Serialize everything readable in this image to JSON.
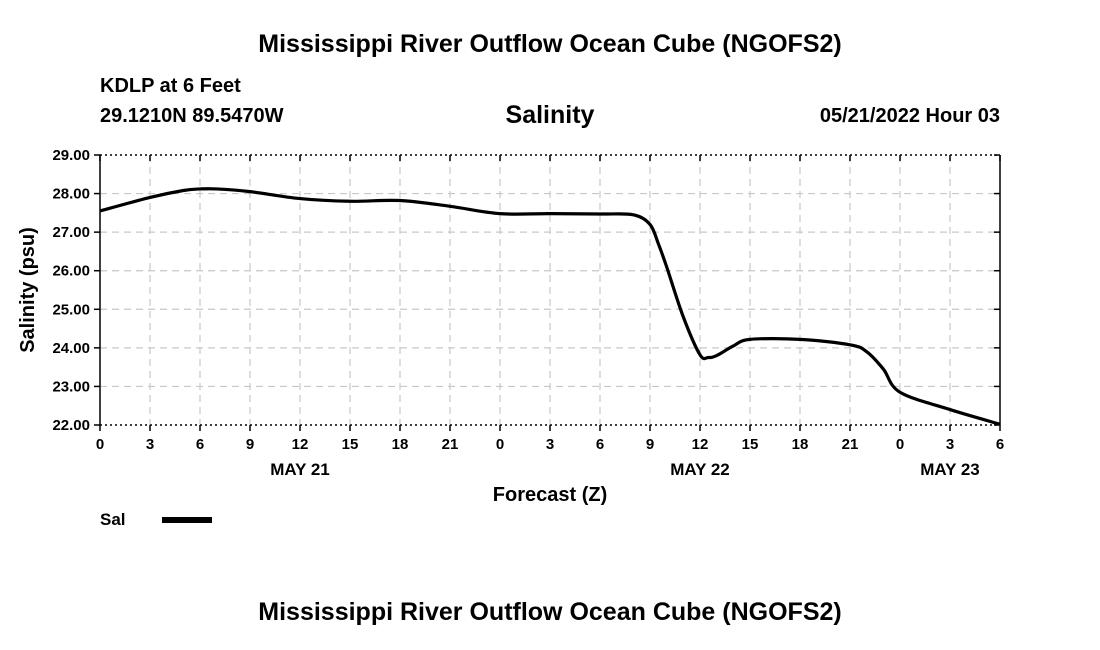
{
  "header": {
    "title": "Mississippi River Outflow Ocean Cube (NGOFS2)",
    "station": "KDLP at 6 Feet",
    "coords": "29.1210N  89.5470W",
    "chart_title": "Salinity",
    "datetime": "05/21/2022 Hour 03"
  },
  "footer": {
    "title": "Mississippi River Outflow Ocean Cube (NGOFS2)"
  },
  "chart_data": {
    "type": "line",
    "title": "Salinity",
    "xlabel": "Forecast (Z)",
    "ylabel": "Salinity (psu)",
    "xlim": [
      0,
      54
    ],
    "ylim": [
      22,
      29
    ],
    "grid": true,
    "x_ticks": [
      0,
      3,
      6,
      9,
      12,
      15,
      18,
      21,
      24,
      27,
      30,
      33,
      36,
      39,
      42,
      45,
      48,
      51,
      54
    ],
    "x_tick_labels": [
      "0",
      "3",
      "6",
      "9",
      "12",
      "15",
      "18",
      "21",
      "0",
      "3",
      "6",
      "9",
      "12",
      "15",
      "18",
      "21",
      "0",
      "3",
      "6"
    ],
    "y_ticks": [
      22,
      23,
      24,
      25,
      26,
      27,
      28,
      29
    ],
    "y_tick_labels": [
      "22.00",
      "23.00",
      "24.00",
      "25.00",
      "26.00",
      "27.00",
      "28.00",
      "29.00"
    ],
    "day_labels": [
      {
        "hour": 12,
        "label": "MAY 21"
      },
      {
        "hour": 36,
        "label": "MAY 22"
      },
      {
        "hour": 51,
        "label": "MAY 23"
      }
    ],
    "legend": [
      {
        "name": "Sal",
        "color": "#000000"
      }
    ],
    "series": [
      {
        "name": "Sal",
        "x": [
          0,
          3,
          5,
          6,
          7,
          9,
          12,
          15,
          18,
          21,
          24,
          27,
          30,
          32,
          33,
          33.5,
          34,
          35,
          36,
          36.5,
          37,
          38,
          39,
          42,
          45,
          46,
          47,
          48,
          51,
          54
        ],
        "values": [
          27.55,
          27.9,
          28.08,
          28.12,
          28.12,
          28.05,
          27.87,
          27.8,
          27.82,
          27.67,
          27.48,
          27.48,
          27.47,
          27.45,
          27.2,
          26.7,
          26.1,
          24.8,
          23.82,
          23.75,
          23.8,
          24.05,
          24.22,
          24.22,
          24.08,
          23.9,
          23.45,
          22.85,
          22.4,
          22.02
        ]
      }
    ]
  }
}
